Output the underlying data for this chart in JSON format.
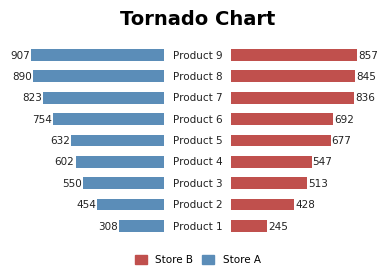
{
  "title": "Tornado Chart",
  "products": [
    "Product 1",
    "Product 2",
    "Product 3",
    "Product 4",
    "Product 5",
    "Product 6",
    "Product 7",
    "Product 8",
    "Product 9"
  ],
  "store_a": [
    308,
    454,
    550,
    602,
    632,
    754,
    823,
    890,
    907
  ],
  "store_b": [
    245,
    428,
    513,
    547,
    677,
    692,
    836,
    845,
    857
  ],
  "color_a": "#5B8DB8",
  "color_b": "#C0504D",
  "background": "#FFFFFF",
  "title_fontsize": 14,
  "label_fontsize": 7.5,
  "bar_height": 0.55,
  "legend_labels": [
    "Store B",
    "Store A"
  ],
  "max_val": 960
}
